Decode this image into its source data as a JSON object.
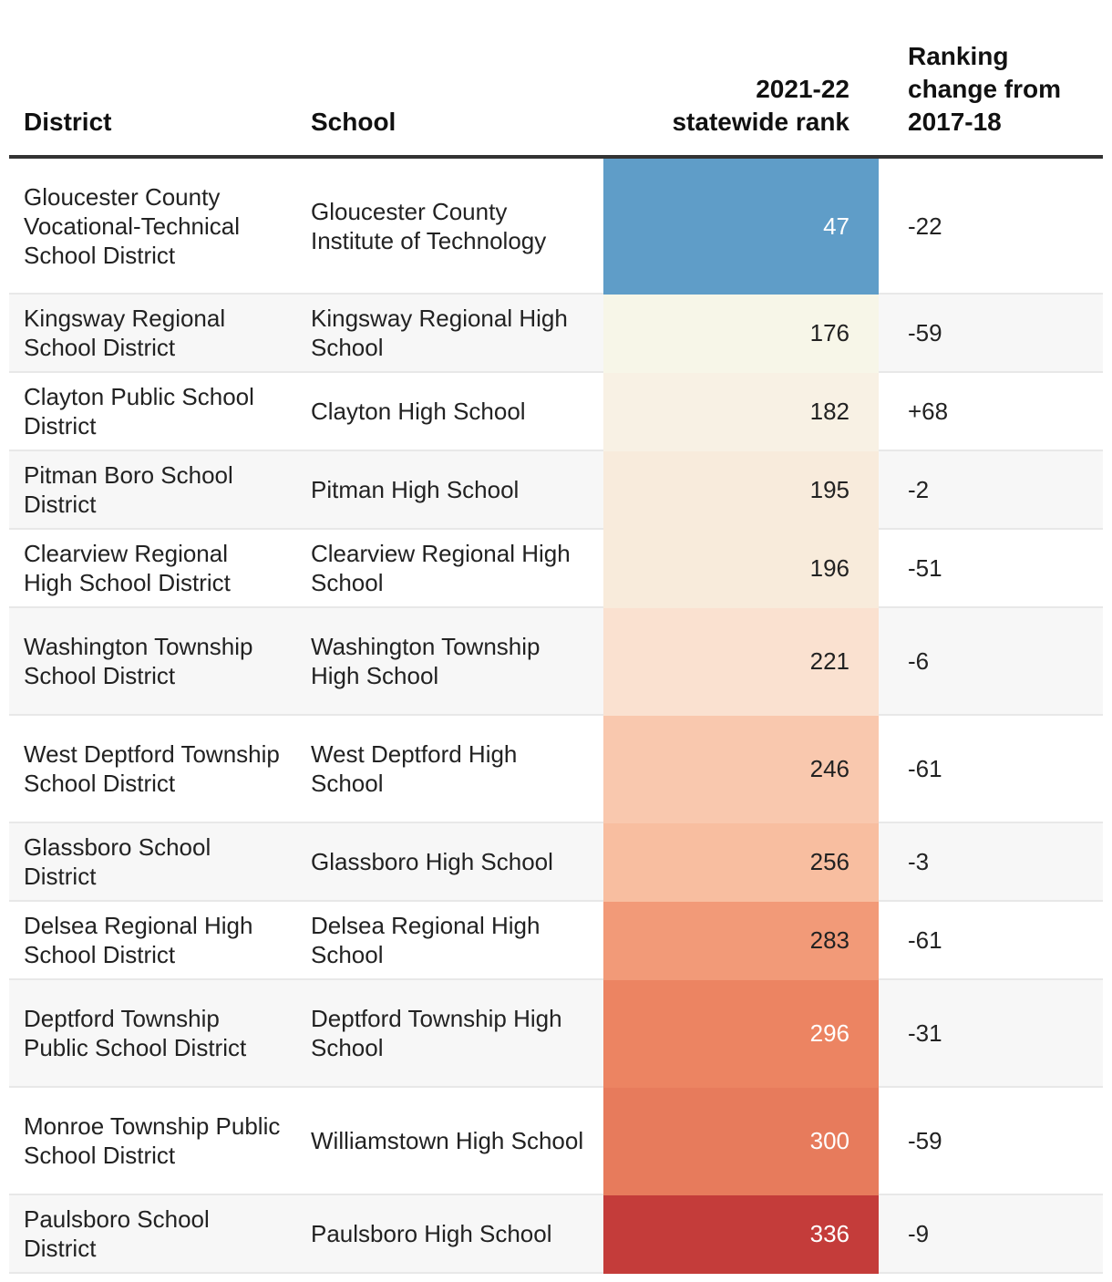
{
  "chart_data": {
    "type": "table",
    "columns": [
      "District",
      "School",
      "2021-22 statewide rank",
      "Ranking change from 2017-18"
    ],
    "rows": [
      {
        "district": "Gloucester County Vocational-Technical School District",
        "school": "Gloucester County Institute of Technology",
        "rank": "47",
        "change": "-22",
        "rank_bg": "#5f9dc8",
        "rank_fg": "#ffffff"
      },
      {
        "district": "Kingsway Regional School District",
        "school": "Kingsway Regional High School",
        "rank": "176",
        "change": "-59",
        "rank_bg": "#f7f6e8",
        "rank_fg": "#222222"
      },
      {
        "district": "Clayton Public School District",
        "school": "Clayton High School",
        "rank": "182",
        "change": "+68",
        "rank_bg": "#f8f1e4",
        "rank_fg": "#222222"
      },
      {
        "district": "Pitman Boro School District",
        "school": "Pitman High School",
        "rank": "195",
        "change": "-2",
        "rank_bg": "#f8ebdc",
        "rank_fg": "#222222"
      },
      {
        "district": "Clearview Regional High School District",
        "school": "Clearview Regional High School",
        "rank": "196",
        "change": "-51",
        "rank_bg": "#f8ebdb",
        "rank_fg": "#222222"
      },
      {
        "district": "Washington Township School District",
        "school": "Washington Township High School",
        "rank": "221",
        "change": "-6",
        "rank_bg": "#fae1d0",
        "rank_fg": "#222222"
      },
      {
        "district": "West Deptford Township School District",
        "school": "West Deptford High School",
        "rank": "246",
        "change": "-61",
        "rank_bg": "#f9c8ae",
        "rank_fg": "#222222"
      },
      {
        "district": "Glassboro School District",
        "school": "Glassboro High School",
        "rank": "256",
        "change": "-3",
        "rank_bg": "#f8bea0",
        "rank_fg": "#222222"
      },
      {
        "district": "Delsea Regional High School District",
        "school": "Delsea Regional High School",
        "rank": "283",
        "change": "-61",
        "rank_bg": "#f29a78",
        "rank_fg": "#222222"
      },
      {
        "district": "Deptford Township Public School District",
        "school": "Deptford Township High School",
        "rank": "296",
        "change": "-31",
        "rank_bg": "#ec8462",
        "rank_fg": "#ffffff"
      },
      {
        "district": "Monroe Township Public School District",
        "school": "Williamstown High School",
        "rank": "300",
        "change": "-59",
        "rank_bg": "#e77b5c",
        "rank_fg": "#ffffff"
      },
      {
        "district": "Paulsboro School District",
        "school": "Paulsboro High School",
        "rank": "336",
        "change": "-9",
        "rank_bg": "#c43c3a",
        "rank_fg": "#ffffff"
      }
    ]
  },
  "header": {
    "district": "District",
    "school": "School",
    "rank_line1": "2021-22",
    "rank_line2": "statewide rank",
    "change_line1": "Ranking",
    "change_line2": "change from",
    "change_line3": "2017-18"
  }
}
